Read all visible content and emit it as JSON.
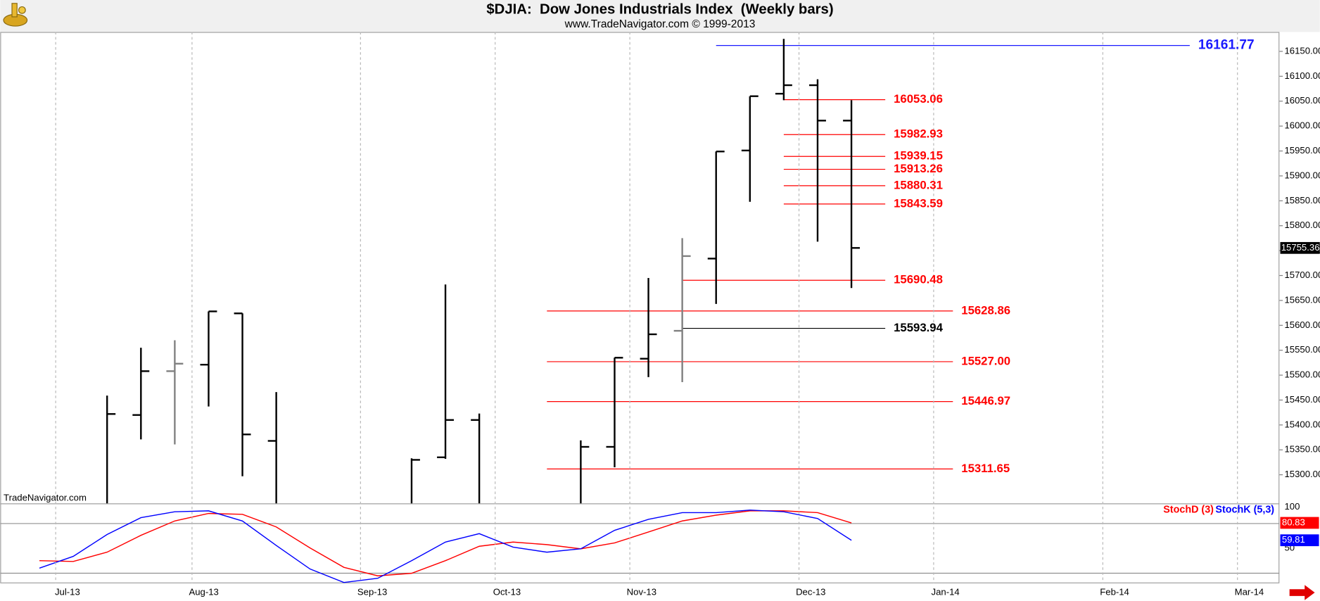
{
  "header": {
    "title": "$DJIA:  Dow Jones Industrials Index  (Weekly bars)",
    "subtitle": "www.TradeNavigator.com © 1999-2013",
    "watermark": "TradeNavigator.com"
  },
  "chart_data": [
    {
      "type": "ohlc",
      "color": "#000000",
      "xlim": [
        -3.16,
        34.65
      ],
      "xticks": [
        {
          "value": -1.52,
          "label": "Jul-13"
        },
        {
          "value": 2.51,
          "label": "Aug-13"
        },
        {
          "value": 7.49,
          "label": "Sep-13"
        },
        {
          "value": 11.47,
          "label": "Oct-13"
        },
        {
          "value": 15.45,
          "label": "Nov-13"
        },
        {
          "value": 20.45,
          "label": "Dec-13"
        },
        {
          "value": 24.43,
          "label": "Jan-14"
        },
        {
          "value": 29.43,
          "label": "Feb-14"
        },
        {
          "value": 33.41,
          "label": "Mar-14"
        }
      ],
      "ylim": [
        15242.6,
        16188.9
      ],
      "yticks": [
        {
          "value": 15300,
          "label": "15300.00"
        },
        {
          "value": 15350,
          "label": "15350.00"
        },
        {
          "value": 15400,
          "label": "15400.00"
        },
        {
          "value": 15450,
          "label": "15450.00"
        },
        {
          "value": 15500,
          "label": "15500.00"
        },
        {
          "value": 15550,
          "label": "15550.00"
        },
        {
          "value": 15600,
          "label": "15600.00"
        },
        {
          "value": 15650,
          "label": "15650.00"
        },
        {
          "value": 15700,
          "label": "15700.00"
        },
        {
          "value": 15750,
          "label": "15750.00"
        },
        {
          "value": 15800,
          "label": "15800.00"
        },
        {
          "value": 15850,
          "label": "15850.00"
        },
        {
          "value": 15900,
          "label": "15900.00"
        },
        {
          "value": 15950,
          "label": "15950.00"
        },
        {
          "value": 16000,
          "label": "16000.00"
        },
        {
          "value": 16050,
          "label": "16050.00"
        },
        {
          "value": 16100,
          "label": "16100.00"
        },
        {
          "value": 16150,
          "label": "16150.00"
        }
      ],
      "bars": [
        {
          "x": 0,
          "open": null,
          "high": 15459,
          "low": null,
          "close": 15422
        },
        {
          "x": 1,
          "open": 15420,
          "high": 15555,
          "low": 15371,
          "close": 15508
        },
        {
          "x": 2,
          "open": 15508,
          "high": 15570,
          "low": 15361,
          "close": 15523,
          "color": "#808080"
        },
        {
          "x": 3,
          "open": 15521,
          "high": 15628,
          "low": 15437,
          "close": 15628
        },
        {
          "x": 4,
          "open": 15624,
          "high": 15624,
          "low": 15297,
          "close": 15381
        },
        {
          "x": 5,
          "open": 15368,
          "high": 15466,
          "low": null,
          "close": null
        },
        {
          "x": 9,
          "open": null,
          "high": 15333,
          "low": null,
          "close": 15330
        },
        {
          "x": 10,
          "open": 15335,
          "high": 15682,
          "low": 15332,
          "close": 15410
        },
        {
          "x": 11,
          "open": 15410,
          "high": 15423,
          "low": null,
          "close": null
        },
        {
          "x": 14,
          "open": null,
          "high": 15369,
          "low": null,
          "close": 15356
        },
        {
          "x": 15,
          "open": 15356,
          "high": 15535,
          "low": 15315,
          "close": 15535
        },
        {
          "x": 16,
          "open": 15533,
          "high": 15695,
          "low": 15496,
          "close": 15582
        },
        {
          "x": 17,
          "open": 15589,
          "high": 15775,
          "low": 15486,
          "close": 15739,
          "color": "#808080"
        },
        {
          "x": 18,
          "open": 15734,
          "high": 15949,
          "low": 15643,
          "close": 15949
        },
        {
          "x": 19,
          "open": 15951,
          "high": 16060,
          "low": 15848,
          "close": 16060
        },
        {
          "x": 20,
          "open": 16065,
          "high": 16175,
          "low": 16052,
          "close": 16082
        },
        {
          "x": 21,
          "open": 16082,
          "high": 16094,
          "low": 15768,
          "close": 16011
        },
        {
          "x": 22,
          "open": 16011,
          "high": 16052,
          "low": 15675,
          "close": 15755.36
        }
      ],
      "levels": [
        {
          "value": 16161.77,
          "x": [
            18,
            32
          ],
          "color": "#1a1aff"
        },
        {
          "value": 16053.06,
          "x": [
            20,
            23
          ],
          "color": "#ff0000"
        },
        {
          "value": 15982.93,
          "x": [
            20,
            23
          ],
          "color": "#ff0000"
        },
        {
          "value": 15939.15,
          "x": [
            20,
            23
          ],
          "color": "#ff0000"
        },
        {
          "value": 15913.26,
          "x": [
            20,
            23
          ],
          "color": "#ff0000"
        },
        {
          "value": 15880.31,
          "x": [
            20,
            23
          ],
          "color": "#ff0000"
        },
        {
          "value": 15843.59,
          "x": [
            20,
            23
          ],
          "color": "#ff0000"
        },
        {
          "value": 15690.48,
          "x": [
            17,
            23
          ],
          "color": "#ff0000"
        },
        {
          "value": 15628.86,
          "x": [
            13,
            25
          ],
          "color": "#ff0000"
        },
        {
          "value": 15593.94,
          "x": [
            17,
            23
          ],
          "color": "#000000"
        },
        {
          "value": 15527,
          "value_label": "15527.00",
          "x": [
            13,
            25
          ],
          "color": "#ff0000"
        },
        {
          "value": 15446.97,
          "x": [
            13,
            25
          ],
          "color": "#ff0000"
        },
        {
          "value": 15311.65,
          "x": [
            13,
            25
          ],
          "color": "#ff0000"
        }
      ]
    },
    {
      "type": "line",
      "x": [
        -2,
        -1,
        0,
        1,
        2,
        3,
        4,
        5,
        6,
        7,
        8,
        9,
        10,
        11,
        12,
        13,
        14,
        15,
        16,
        17,
        18,
        19,
        20,
        21,
        22
      ],
      "ylim": [
        7.8,
        104.4
      ],
      "yticks": [
        50,
        100
      ],
      "bands": [
        20,
        80
      ],
      "series": [
        {
          "name": "StochD (3)",
          "color": "#ff0000",
          "values": [
            35.2,
            34.2,
            45.4,
            65.8,
            83.1,
            92.2,
            91.2,
            75.9,
            50.5,
            27.1,
            16.9,
            19.9,
            35.2,
            52.5,
            57.6,
            54.6,
            49.5,
            56.6,
            69.8,
            83.1,
            90.2,
            95.3,
            95.3,
            93.2,
            80.83
          ]
        },
        {
          "name": "StochK (5,3)",
          "color": "#0000ff",
          "values": [
            26.1,
            40.3,
            66.8,
            87.1,
            94.2,
            95.3,
            83.1,
            53.6,
            25.1,
            8.8,
            13.9,
            35.2,
            57.6,
            67.8,
            51.5,
            45.4,
            49.5,
            71.9,
            85.1,
            93.2,
            93.2,
            96.3,
            94.2,
            86.1,
            59.81
          ]
        }
      ]
    }
  ]
}
